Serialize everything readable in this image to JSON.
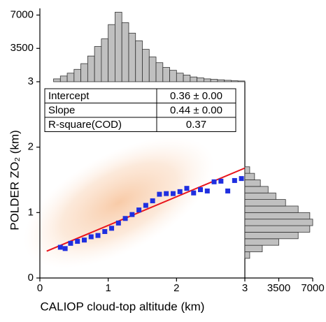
{
  "chart_data": [
    {
      "type": "scatter",
      "x_label": "CALIOP cloud-top altitude (km)",
      "y_label": "POLDER ZO₂ (km)",
      "xlim": [
        0,
        3
      ],
      "ylim": [
        0,
        3
      ],
      "xticks": [
        0,
        1,
        2,
        3
      ],
      "yticks": [
        0,
        1,
        2,
        3
      ],
      "points": {
        "color": "#1f2fe0",
        "x": [
          0.3,
          0.37,
          0.45,
          0.55,
          0.65,
          0.75,
          0.85,
          0.95,
          1.05,
          1.15,
          1.25,
          1.35,
          1.45,
          1.55,
          1.65,
          1.75,
          1.85,
          1.95,
          2.05,
          2.15,
          2.25,
          2.35,
          2.45,
          2.55,
          2.65,
          2.75,
          2.85,
          2.95
        ],
        "values": [
          0.47,
          0.45,
          0.53,
          0.56,
          0.58,
          0.63,
          0.65,
          0.71,
          0.76,
          0.84,
          0.91,
          0.97,
          1.04,
          1.11,
          1.18,
          1.28,
          1.29,
          1.29,
          1.32,
          1.37,
          1.3,
          1.35,
          1.33,
          1.47,
          1.48,
          1.33,
          1.49,
          1.52
        ]
      },
      "fit": {
        "color": "#e8141c",
        "x": [
          0.1,
          3.0
        ],
        "values": [
          0.41,
          1.68
        ]
      },
      "table": {
        "rows": [
          [
            "Intercept",
            "0.36 ± 0.00"
          ],
          [
            "Slope",
            "0.44 ± 0.00"
          ],
          [
            "R-square(COD)",
            "0.37"
          ]
        ]
      }
    },
    {
      "type": "histogram",
      "color": "#c0c0c0",
      "bins": [
        0.2,
        0.3,
        0.4,
        0.5,
        0.6,
        0.7,
        0.8,
        0.9,
        1.0,
        1.1,
        1.2,
        1.3,
        1.4,
        1.5,
        1.6,
        1.7,
        1.8,
        1.9,
        2.0,
        2.1,
        2.2,
        2.3,
        2.4,
        2.5,
        2.6,
        2.7,
        2.8,
        2.9,
        3.0
      ],
      "values": [
        300,
        600,
        900,
        1300,
        1900,
        2700,
        3700,
        4500,
        6000,
        7300,
        6200,
        5100,
        4300,
        3400,
        2600,
        2000,
        1500,
        1200,
        900,
        700,
        500,
        400,
        300,
        250,
        200,
        150,
        100,
        80
      ],
      "ylim": [
        0,
        7700
      ],
      "yticks": [
        3500,
        7000
      ]
    },
    {
      "type": "histogram",
      "orientation": "horizontal",
      "color": "#c0c0c0",
      "bins": [
        0.3,
        0.4,
        0.5,
        0.6,
        0.7,
        0.8,
        0.9,
        1.0,
        1.1,
        1.2,
        1.3,
        1.4,
        1.5,
        1.6,
        1.7
      ],
      "values": [
        500,
        1800,
        3500,
        5500,
        6700,
        7000,
        6700,
        5500,
        4200,
        3200,
        2400,
        1600,
        1000,
        500
      ],
      "xlim": [
        0,
        7000
      ],
      "xticks": [
        3500,
        7000
      ]
    }
  ]
}
